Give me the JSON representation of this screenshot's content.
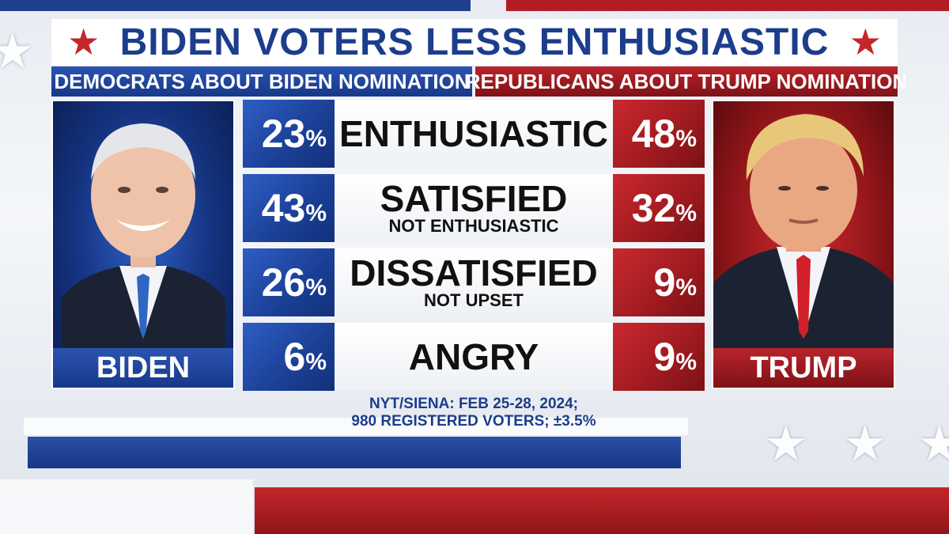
{
  "title": "BIDEN VOTERS LESS ENTHUSIASTIC",
  "headers": {
    "left": "DEMOCRATS ABOUT BIDEN NOMINATION",
    "right": "REPUBLICANS ABOUT TRUMP NOMINATION"
  },
  "portraits": {
    "left_name": "BIDEN",
    "right_name": "TRUMP"
  },
  "source": {
    "line1": "NYT/SIENA: FEB 25-28, 2024;",
    "line2": "980 REGISTERED VOTERS; ±3.5%"
  },
  "colors": {
    "blue": "#1c3d8c",
    "red": "#b01e23"
  },
  "chart_data": {
    "type": "table",
    "title": "BIDEN VOTERS LESS ENTHUSIASTIC",
    "columns": [
      "DEMOCRATS ABOUT BIDEN NOMINATION",
      "",
      "REPUBLICANS ABOUT TRUMP NOMINATION"
    ],
    "rows": [
      {
        "label": "ENTHUSIASTIC",
        "sublabel": "",
        "biden": 23,
        "trump": 48
      },
      {
        "label": "SATISFIED",
        "sublabel": "NOT ENTHUSIASTIC",
        "biden": 43,
        "trump": 32
      },
      {
        "label": "DISSATISFIED",
        "sublabel": "NOT UPSET",
        "biden": 26,
        "trump": 9
      },
      {
        "label": "ANGRY",
        "sublabel": "",
        "biden": 6,
        "trump": 9
      }
    ],
    "unit": "%"
  }
}
